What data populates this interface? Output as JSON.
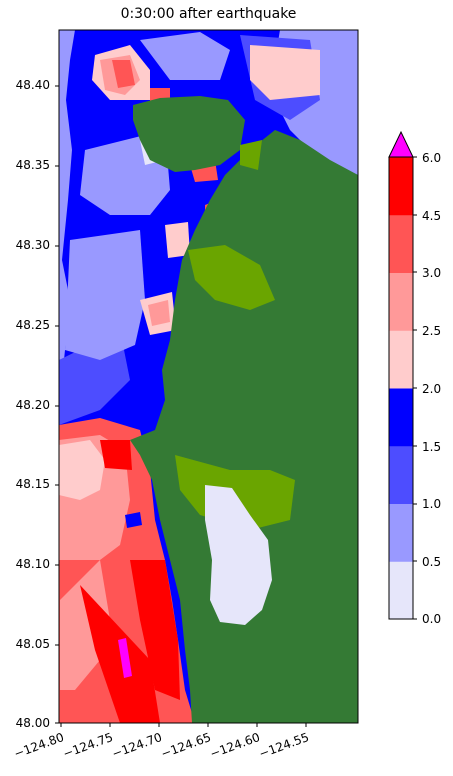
{
  "title": "0:30:00 after earthquake",
  "y_ticks": [
    "48.40",
    "48.35",
    "48.30",
    "48.25",
    "48.20",
    "48.15",
    "48.10",
    "48.05",
    "48.00"
  ],
  "x_ticks": [
    "−124.80",
    "−124.75",
    "−124.70",
    "−124.65",
    "−124.60",
    "−124.55"
  ],
  "colorbar": {
    "ticks": [
      "0.0",
      "0.5",
      "1.0",
      "1.5",
      "2.0",
      "2.5",
      "3.0",
      "4.5",
      "6.0"
    ],
    "colors": [
      "#e6e6fa",
      "#9999ff",
      "#4d4dff",
      "#0000ff",
      "#ffcccc",
      "#ff9999",
      "#ff5555",
      "#ff0000"
    ],
    "over_color": "#ff00ff"
  },
  "colors": {
    "land": "#347a34",
    "shallow_land": "#6aa500"
  }
}
